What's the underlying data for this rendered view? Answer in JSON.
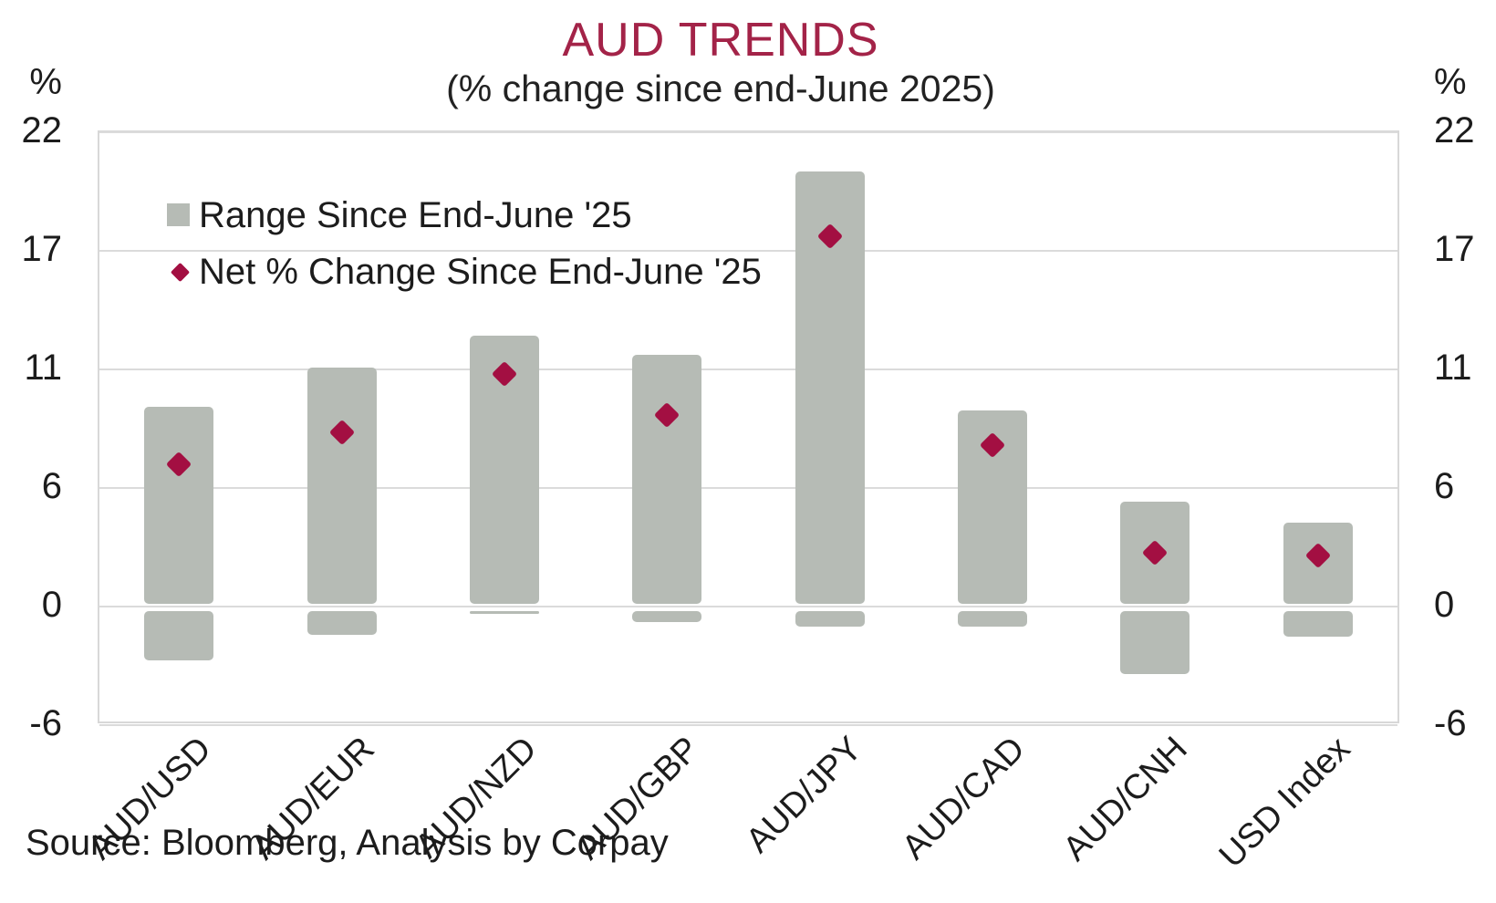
{
  "header": {
    "title": "AUD TRENDS",
    "subtitle": "(% change since end-June 2025)"
  },
  "y_axis": {
    "unit": "%"
  },
  "legend": {
    "items": [
      {
        "label": "Range Since End-June '25",
        "marker": "square"
      },
      {
        "label": "Net % Change Since End-June '25",
        "marker": "diamond"
      }
    ]
  },
  "footer": {
    "source": "Source: Bloomberg, Analysis by Corpay"
  },
  "colors": {
    "title": "#A32348",
    "marker": "#A30F42",
    "bar": "#B6BBB5",
    "gridline": "#DBDBDB",
    "text": "#1C1C1C"
  },
  "chart_data": {
    "type": "bar",
    "subtype": "floating-range-bars-with-point-markers",
    "title": "AUD TRENDS",
    "subtitle": "(% change since end-June 2025)",
    "ylabel": "%",
    "ylim": [
      -5.5,
      22
    ],
    "yticks": {
      "values": [
        22,
        16.5,
        11,
        5.5,
        0,
        -5.5
      ],
      "labels": [
        "22",
        "17",
        "11",
        "6",
        "0",
        "-6"
      ]
    },
    "grid": "horizontal",
    "legend_position": "top-left-inside",
    "categories": [
      "AUD/USD",
      "AUD/EUR",
      "AUD/NZD",
      "AUD/GBP",
      "AUD/JPY",
      "AUD/CAD",
      "AUD/CNH",
      "USD Index"
    ],
    "series": [
      {
        "name": "Range Since End-June '25",
        "type": "range-bar",
        "high": [
          9.2,
          11.0,
          12.5,
          11.6,
          20.1,
          9.0,
          4.8,
          3.8
        ],
        "low": [
          -2.6,
          -1.4,
          -0.4,
          -0.8,
          -1.0,
          -1.0,
          -3.2,
          -1.5
        ]
      },
      {
        "name": "Net % Change Since End-June '25",
        "type": "point-diamond",
        "values": [
          6.5,
          8.0,
          10.7,
          8.8,
          17.1,
          7.4,
          2.4,
          2.3
        ]
      }
    ]
  }
}
